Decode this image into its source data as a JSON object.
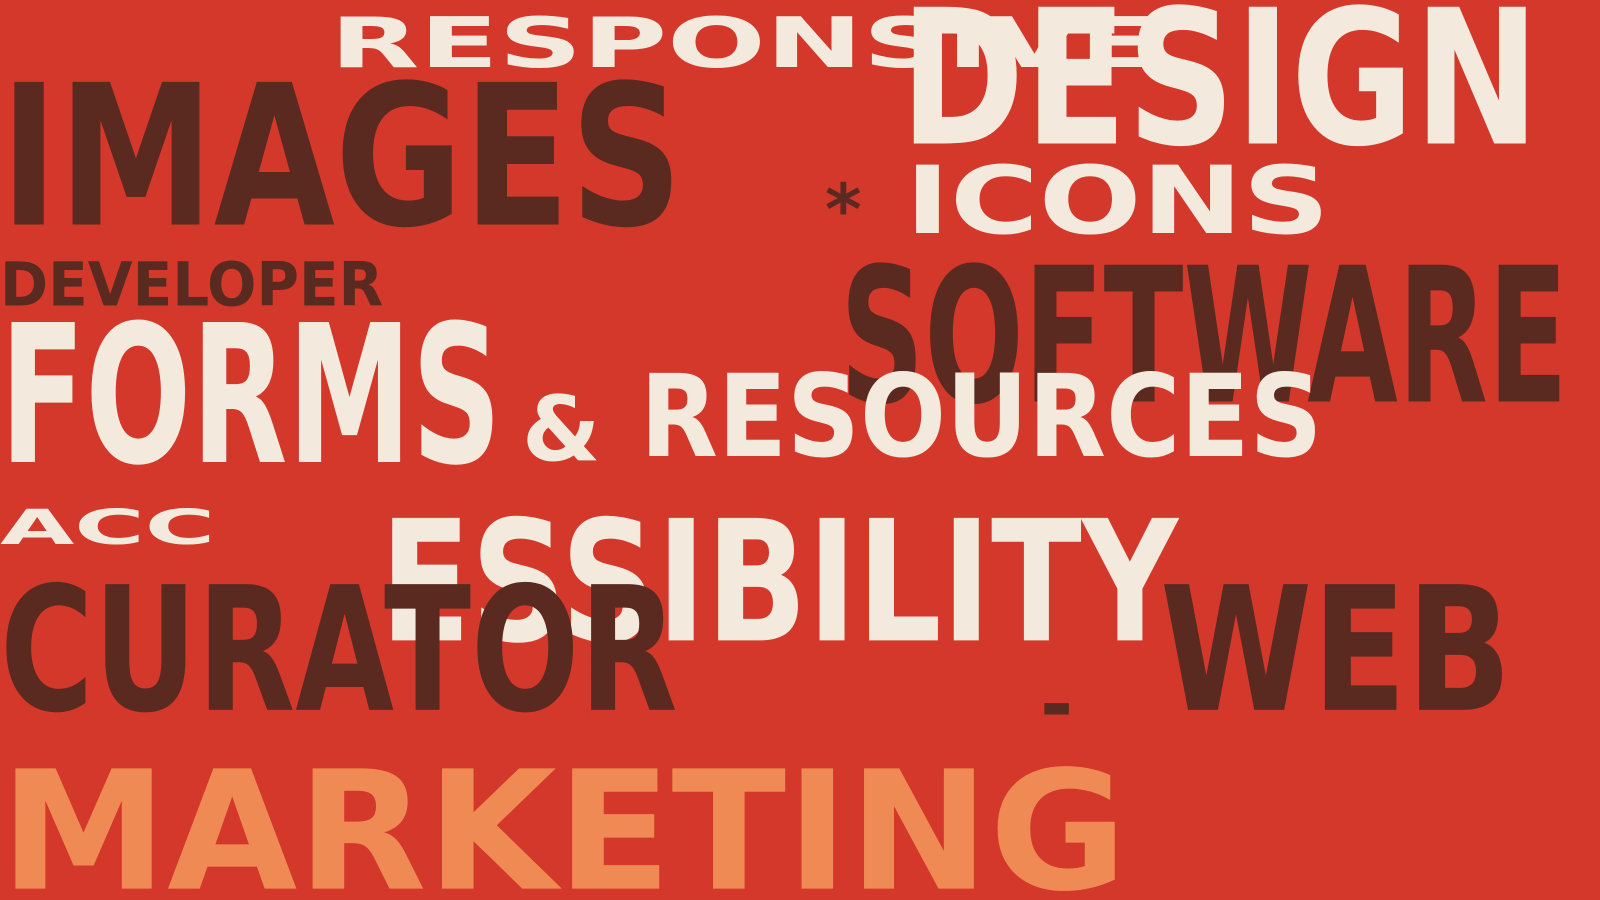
{
  "poster": {
    "row1": {
      "part1": "RESPONSIVE",
      "part2": "DESIGN"
    },
    "row2": {
      "part1": "IMAGES",
      "part2": "*",
      "part3": "ICONS"
    },
    "row3": {
      "part1": "DEVELOPER",
      "part2": "SOFTWARE"
    },
    "row4": {
      "part1": "FORMS",
      "part2": "&",
      "part3": "RESOURCES"
    },
    "row5": {
      "part1": "ACC",
      "part2": "ESSIBILITY"
    },
    "row6": {
      "part1": "CURATOR",
      "part2": "-",
      "part3": "WEB"
    },
    "row7": {
      "part1": "MARKETING"
    }
  },
  "colors": {
    "background": "#d3382b",
    "cream": "#f4e9dd",
    "brown": "#5a2a20",
    "orange": "#f08a55"
  }
}
